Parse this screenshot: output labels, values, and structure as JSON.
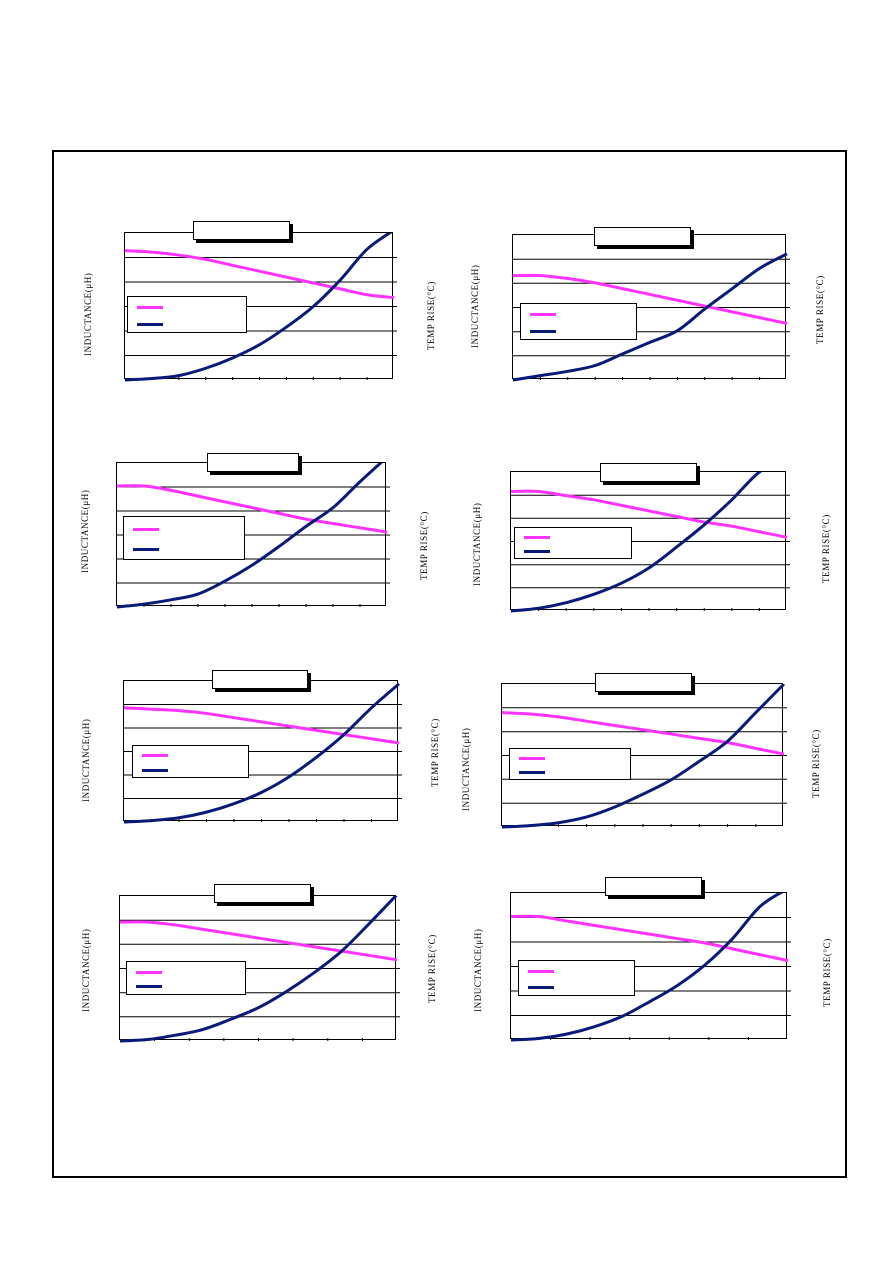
{
  "colors": {
    "inductance": "#ff33ff",
    "temp_rise": "#0a1a78",
    "grid": "#000000"
  },
  "chart_data": [
    {
      "type": "line",
      "left_axis_label": "INDUCTANCE(μH)",
      "right_axis_label": "TEMP RISE(°C)",
      "x": [
        0,
        1,
        2,
        3,
        4,
        5,
        6,
        7,
        8,
        9,
        10
      ],
      "series": [
        {
          "values": [
            0.88,
            0.87,
            0.85,
            0.82,
            0.78,
            0.74,
            0.7,
            0.66,
            0.62,
            0.58,
            0.56
          ]
        },
        {
          "values": [
            0.0,
            0.01,
            0.03,
            0.08,
            0.15,
            0.24,
            0.36,
            0.5,
            0.68,
            0.89,
            1.02
          ]
        }
      ]
    },
    {
      "type": "line",
      "left_axis_label": "INDUCTANCE(μH)",
      "right_axis_label": "TEMP RISE(°C)",
      "x": [
        0,
        1,
        2,
        3,
        4,
        5,
        6,
        7,
        8,
        9,
        10
      ],
      "series": [
        {
          "values": [
            0.72,
            0.72,
            0.7,
            0.67,
            0.63,
            0.59,
            0.55,
            0.51,
            0.47,
            0.43,
            0.39
          ]
        },
        {
          "values": [
            0.0,
            0.03,
            0.06,
            0.1,
            0.18,
            0.26,
            0.34,
            0.49,
            0.63,
            0.77,
            0.87
          ]
        }
      ]
    },
    {
      "type": "line",
      "left_axis_label": "INDUCTANCE(μH)",
      "right_axis_label": "TEMP RISE(°C)",
      "x": [
        0,
        1,
        2,
        3,
        4,
        5,
        6,
        7,
        8,
        9,
        10
      ],
      "series": [
        {
          "values": [
            0.84,
            0.84,
            0.81,
            0.77,
            0.73,
            0.69,
            0.65,
            0.61,
            0.58,
            0.55,
            0.52
          ]
        },
        {
          "values": [
            0.0,
            0.02,
            0.05,
            0.09,
            0.18,
            0.29,
            0.42,
            0.56,
            0.69,
            0.87,
            1.04
          ]
        }
      ]
    },
    {
      "type": "line",
      "left_axis_label": "INDUCTANCE(μH)",
      "right_axis_label": "TEMP RISE(°C)",
      "x": [
        0,
        1,
        2,
        3,
        4,
        5,
        6,
        7,
        8,
        9,
        10
      ],
      "series": [
        {
          "values": [
            0.86,
            0.86,
            0.83,
            0.8,
            0.76,
            0.72,
            0.68,
            0.64,
            0.61,
            0.57,
            0.53
          ]
        },
        {
          "values": [
            0.0,
            0.02,
            0.06,
            0.12,
            0.2,
            0.31,
            0.46,
            0.62,
            0.8,
            1.0,
            1.1
          ]
        }
      ]
    },
    {
      "type": "line",
      "left_axis_label": "INDUCTANCE(μH)",
      "right_axis_label": "TEMP RISE(°C)",
      "x": [
        0,
        1,
        2,
        3,
        4,
        5,
        6,
        7,
        8,
        9,
        10
      ],
      "series": [
        {
          "values": [
            0.81,
            0.8,
            0.79,
            0.77,
            0.74,
            0.71,
            0.68,
            0.65,
            0.62,
            0.59,
            0.56
          ]
        },
        {
          "values": [
            0.0,
            0.01,
            0.03,
            0.07,
            0.13,
            0.21,
            0.32,
            0.46,
            0.62,
            0.81,
            0.98
          ]
        }
      ]
    },
    {
      "type": "line",
      "left_axis_label": "INDUCTANCE(μH)",
      "right_axis_label": "TEMP RISE(°C)",
      "x": [
        0,
        1,
        2,
        3,
        4,
        5,
        6,
        7,
        8,
        9,
        10
      ],
      "series": [
        {
          "values": [
            0.8,
            0.79,
            0.77,
            0.74,
            0.71,
            0.68,
            0.65,
            0.62,
            0.59,
            0.55,
            0.51
          ]
        },
        {
          "values": [
            0.0,
            0.01,
            0.03,
            0.07,
            0.14,
            0.23,
            0.33,
            0.46,
            0.6,
            0.8,
            1.0
          ]
        }
      ]
    },
    {
      "type": "line",
      "left_axis_label": "INDUCTANCE(μH)",
      "right_axis_label": "TEMP RISE(°C)",
      "x": [
        0,
        1,
        2,
        3,
        4,
        5,
        6,
        7,
        8,
        9,
        10
      ],
      "series": [
        {
          "values": [
            0.82,
            0.82,
            0.8,
            0.77,
            0.74,
            0.71,
            0.68,
            0.65,
            0.62,
            0.59,
            0.56
          ]
        },
        {
          "values": [
            0.0,
            0.01,
            0.04,
            0.08,
            0.15,
            0.23,
            0.34,
            0.47,
            0.62,
            0.81,
            1.01
          ]
        }
      ]
    },
    {
      "type": "line",
      "left_axis_label": "INDUCTANCE(μH)",
      "right_axis_label": "TEMP RISE(°C)",
      "x": [
        0,
        1,
        2,
        3,
        4,
        5,
        6,
        7,
        8,
        9,
        10
      ],
      "series": [
        {
          "values": [
            0.84,
            0.84,
            0.81,
            0.78,
            0.75,
            0.72,
            0.69,
            0.66,
            0.62,
            0.58,
            0.54
          ]
        },
        {
          "values": [
            0.0,
            0.01,
            0.04,
            0.09,
            0.16,
            0.26,
            0.37,
            0.51,
            0.69,
            0.91,
            1.03
          ]
        }
      ]
    }
  ]
}
